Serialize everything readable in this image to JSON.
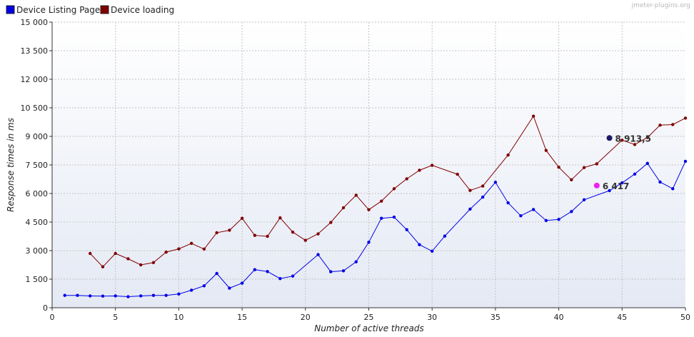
{
  "watermark": "jmeter-plugins.org",
  "chart_data": {
    "type": "line",
    "xlabel": "Number of active threads",
    "ylabel": "Response times in ms",
    "xlim": [
      0,
      50
    ],
    "ylim": [
      0,
      15000
    ],
    "x_ticks": [
      0,
      5,
      10,
      15,
      20,
      25,
      30,
      35,
      40,
      45,
      50
    ],
    "x_tick_labels": [
      "0",
      "5",
      "10",
      "15",
      "20",
      "25",
      "30",
      "35",
      "40",
      "45",
      "50"
    ],
    "y_ticks": [
      0,
      1500,
      3000,
      4500,
      6000,
      7500,
      9000,
      10500,
      12000,
      13500,
      15000
    ],
    "y_tick_labels": [
      "0",
      "1 500",
      "3 000",
      "4 500",
      "6 000",
      "7 500",
      "9 000",
      "10 500",
      "12 000",
      "13 500",
      "15 000"
    ],
    "grid": true,
    "legend_position": "top-left",
    "series": [
      {
        "name": "Device Listing Page",
        "color": "#0000e6",
        "points": [
          [
            1,
            650
          ],
          [
            2,
            650
          ],
          [
            3,
            620
          ],
          [
            4,
            610
          ],
          [
            5,
            620
          ],
          [
            6,
            580
          ],
          [
            7,
            620
          ],
          [
            8,
            650
          ],
          [
            9,
            650
          ],
          [
            10,
            720
          ],
          [
            11,
            920
          ],
          [
            12,
            1150
          ],
          [
            13,
            1800
          ],
          [
            14,
            1030
          ],
          [
            15,
            1290
          ],
          [
            16,
            2000
          ],
          [
            17,
            1900
          ],
          [
            18,
            1530
          ],
          [
            19,
            1660
          ],
          [
            21,
            2790
          ],
          [
            22,
            1890
          ],
          [
            23,
            1940
          ],
          [
            24,
            2410
          ],
          [
            25,
            3440
          ],
          [
            26,
            4700
          ],
          [
            27,
            4760
          ],
          [
            28,
            4100
          ],
          [
            29,
            3310
          ],
          [
            30,
            2970
          ],
          [
            31,
            3760
          ],
          [
            33,
            5180
          ],
          [
            34,
            5810
          ],
          [
            35,
            6590
          ],
          [
            36,
            5510
          ],
          [
            37,
            4830
          ],
          [
            38,
            5160
          ],
          [
            39,
            4580
          ],
          [
            40,
            4640
          ],
          [
            41,
            5050
          ],
          [
            42,
            5670
          ],
          [
            44,
            6150
          ],
          [
            45,
            6560
          ],
          [
            46,
            7020
          ],
          [
            47,
            7580
          ],
          [
            48,
            6600
          ],
          [
            49,
            6250
          ],
          [
            50,
            7690
          ]
        ]
      },
      {
        "name": "Device loading",
        "color": "#800000",
        "points": [
          [
            3,
            2850
          ],
          [
            4,
            2150
          ],
          [
            5,
            2850
          ],
          [
            6,
            2570
          ],
          [
            7,
            2250
          ],
          [
            8,
            2370
          ],
          [
            9,
            2920
          ],
          [
            10,
            3090
          ],
          [
            11,
            3380
          ],
          [
            12,
            3080
          ],
          [
            13,
            3940
          ],
          [
            14,
            4070
          ],
          [
            15,
            4700
          ],
          [
            16,
            3800
          ],
          [
            17,
            3750
          ],
          [
            18,
            4720
          ],
          [
            19,
            3970
          ],
          [
            20,
            3540
          ],
          [
            21,
            3880
          ],
          [
            22,
            4480
          ],
          [
            23,
            5250
          ],
          [
            24,
            5910
          ],
          [
            25,
            5150
          ],
          [
            26,
            5600
          ],
          [
            27,
            6250
          ],
          [
            28,
            6770
          ],
          [
            29,
            7220
          ],
          [
            30,
            7480
          ],
          [
            32,
            7010
          ],
          [
            33,
            6160
          ],
          [
            34,
            6390
          ],
          [
            36,
            8020
          ],
          [
            38,
            10060
          ],
          [
            39,
            8260
          ],
          [
            40,
            7380
          ],
          [
            41,
            6720
          ],
          [
            42,
            7360
          ],
          [
            43,
            7560
          ],
          [
            45,
            8800
          ],
          [
            46,
            8570
          ],
          [
            47,
            8940
          ],
          [
            48,
            9590
          ],
          [
            49,
            9620
          ],
          [
            50,
            9960
          ]
        ]
      }
    ],
    "annotations": [
      {
        "x": 44,
        "y": 8913.5,
        "label": "8 913,5",
        "color": "#1a1a66"
      },
      {
        "x": 43,
        "y": 6417,
        "label": "6 417",
        "color": "#ee22ee"
      }
    ]
  }
}
